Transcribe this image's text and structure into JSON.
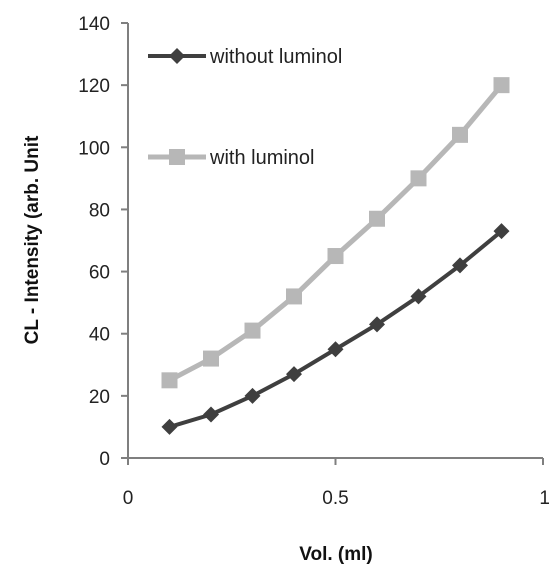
{
  "chart_data": {
    "type": "line",
    "title": "",
    "xlabel": "Vol. (ml)",
    "ylabel": "CL - Intensity (arb. Unit",
    "xlim": [
      0,
      1
    ],
    "ylim": [
      0,
      140
    ],
    "xticks": [
      0,
      0.5,
      1
    ],
    "xtick_labels": [
      "0",
      "0.5",
      "1"
    ],
    "yticks": [
      0,
      20,
      40,
      60,
      80,
      100,
      120,
      140
    ],
    "ytick_labels": [
      "0",
      "20",
      "40",
      "60",
      "80",
      "100",
      "120",
      "140"
    ],
    "grid": false,
    "legend_position": "top-left",
    "series": [
      {
        "name": "without luminol",
        "marker": "diamond",
        "color": "#3f3f3f",
        "x": [
          0.1,
          0.2,
          0.3,
          0.4,
          0.5,
          0.6,
          0.7,
          0.8,
          0.9
        ],
        "y": [
          10,
          14,
          20,
          27,
          35,
          43,
          52,
          62,
          73
        ]
      },
      {
        "name": "with luminol",
        "marker": "square",
        "color": "#b7b7b7",
        "x": [
          0.1,
          0.2,
          0.3,
          0.4,
          0.5,
          0.6,
          0.7,
          0.8,
          0.9
        ],
        "y": [
          25,
          32,
          41,
          52,
          65,
          77,
          90,
          104,
          120
        ]
      }
    ]
  }
}
